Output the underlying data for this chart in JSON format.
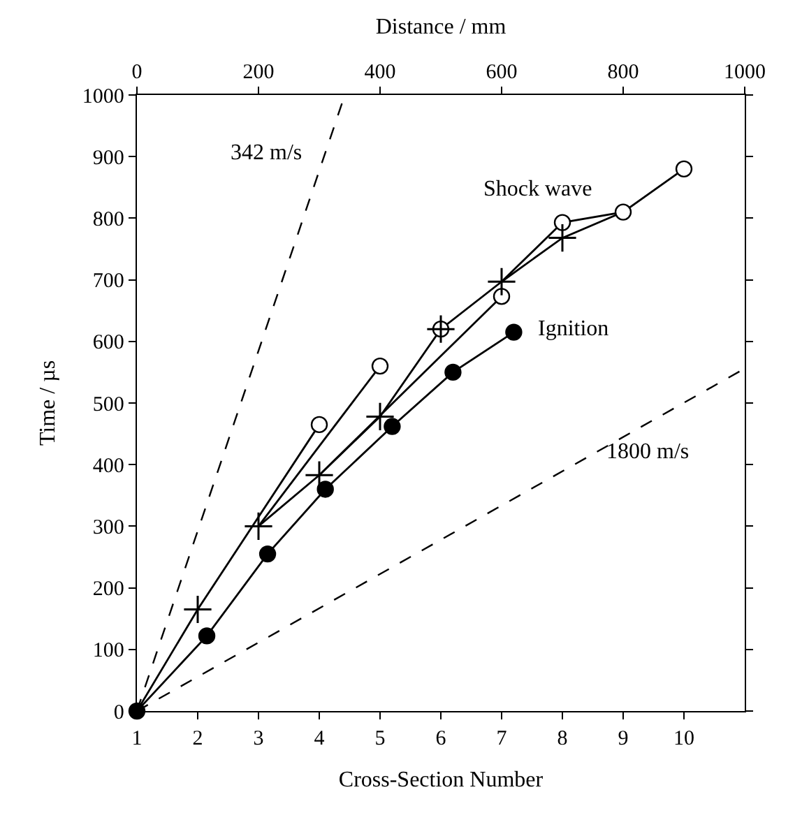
{
  "chart_data": {
    "type": "line",
    "xlabel": "Cross-Section Number",
    "ylabel": "Time / µs",
    "x2label": "Distance / mm",
    "xlim": [
      1,
      11
    ],
    "xticks": [
      1,
      2,
      3,
      4,
      5,
      6,
      7,
      8,
      9,
      10
    ],
    "x2lim": [
      0,
      1000
    ],
    "x2ticks": [
      0,
      200,
      400,
      600,
      800,
      1000
    ],
    "ylim": [
      0,
      1000
    ],
    "yticks": [
      0,
      100,
      200,
      300,
      400,
      500,
      600,
      700,
      800,
      900,
      1000
    ],
    "legend": false,
    "series": [
      {
        "name": "342 m/s",
        "color": "#000000",
        "line_style": "dashed",
        "x": [
          1,
          4.42
        ],
        "values": [
          0,
          1000
        ]
      },
      {
        "name": "1800 m/s",
        "color": "#000000",
        "line_style": "dashed",
        "x": [
          1,
          11
        ],
        "values": [
          0,
          556
        ]
      },
      {
        "color": "#000000",
        "line_style": "solid",
        "x": [
          1,
          2,
          4
        ],
        "values": [
          0,
          165,
          465
        ]
      },
      {
        "color": "#000000",
        "line_style": "solid",
        "x": [
          3,
          5
        ],
        "values": [
          300,
          560
        ]
      },
      {
        "color": "#000000",
        "line_style": "solid",
        "x": [
          3,
          4,
          5,
          6,
          7,
          8,
          9,
          10
        ],
        "values": [
          300,
          383,
          478,
          620,
          697,
          793,
          810,
          880
        ]
      },
      {
        "color": "#000000",
        "line_style": "solid",
        "x": [
          7,
          8,
          9
        ],
        "values": [
          697,
          768,
          810
        ]
      },
      {
        "color": "#000000",
        "line_style": "solid",
        "x": [
          4,
          7
        ],
        "values": [
          383,
          673
        ]
      },
      {
        "name": "Shock wave",
        "type": "scatter",
        "color": "#ffffff",
        "marker": "circle",
        "x": [
          4,
          5,
          6,
          7,
          8,
          9,
          10
        ],
        "values": [
          465,
          560,
          620,
          673,
          793,
          810,
          880
        ]
      },
      {
        "type": "scatter",
        "color": "#000000",
        "marker": "cross",
        "x": [
          2,
          3,
          4,
          5,
          6,
          7,
          8
        ],
        "values": [
          165,
          300,
          383,
          478,
          620,
          697,
          768
        ]
      },
      {
        "name": "Ignition",
        "color": "#000000",
        "marker": "circle",
        "line_style": "solid",
        "x": [
          1,
          2.15,
          3.15,
          4.1,
          5.2,
          6.2,
          7.2
        ],
        "values": [
          0,
          122,
          255,
          360,
          462,
          550,
          615
        ]
      }
    ]
  }
}
